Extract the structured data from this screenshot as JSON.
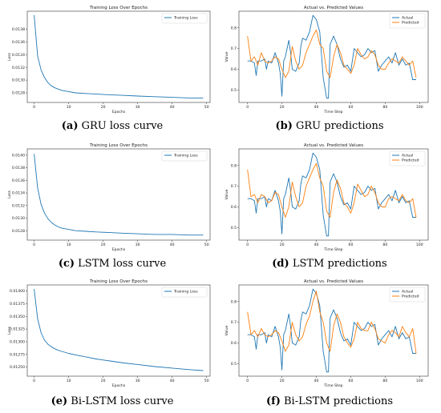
{
  "captions": [
    {
      "tag": "(a)",
      "text": " GRU loss curve"
    },
    {
      "tag": "(b)",
      "text": " GRU predictions"
    },
    {
      "tag": "(c)",
      "text": " LSTM loss curve"
    },
    {
      "tag": "(d)",
      "text": " LSTM predictions"
    },
    {
      "tag": "(e)",
      "text": " Bi-LSTM loss curve"
    },
    {
      "tag": "(f)",
      "text": " Bi-LSTM predictions"
    }
  ],
  "colors": {
    "series_blue": "#1f77b4",
    "series_orange": "#ff7f0e"
  },
  "chart_data": [
    {
      "type": "line",
      "title": "Training Loss Over Epochs",
      "xlabel": "Epochs",
      "ylabel": "Loss",
      "xlim": [
        -2,
        51
      ],
      "ylim": [
        0.01265,
        0.01408
      ],
      "xticks": [
        0,
        10,
        20,
        30,
        40,
        50
      ],
      "yticks": [
        "0.0128",
        "0.0130",
        "0.0132",
        "0.0134",
        "0.0136",
        "0.0138"
      ],
      "ytick_values": [
        0.0128,
        0.013,
        0.0132,
        0.0134,
        0.0136,
        0.0138
      ],
      "legend": "top-right",
      "series": [
        {
          "name": "Training Loss",
          "x": [
            0,
            1,
            2,
            3,
            4,
            5,
            6,
            7,
            8,
            10,
            12,
            15,
            18,
            22,
            26,
            30,
            35,
            40,
            45,
            49
          ],
          "values": [
            0.01402,
            0.01338,
            0.01316,
            0.01304,
            0.01296,
            0.01291,
            0.01288,
            0.01286,
            0.01284,
            0.01282,
            0.0128,
            0.01279,
            0.01278,
            0.01277,
            0.01276,
            0.01275,
            0.01274,
            0.01273,
            0.01272,
            0.01272
          ]
        }
      ]
    },
    {
      "type": "line",
      "title": "Actual vs. Predicted Values",
      "xlabel": "Time Step",
      "ylabel": "Value",
      "xlim": [
        -5,
        105
      ],
      "ylim": [
        0.44,
        0.88
      ],
      "xticks": [
        0,
        20,
        40,
        60,
        80,
        100
      ],
      "yticks": [
        "0.5",
        "0.6",
        "0.7",
        "0.8"
      ],
      "ytick_values": [
        0.5,
        0.6,
        0.7,
        0.8
      ],
      "legend": "top-right",
      "series": [
        {
          "name": "Actual",
          "x": [
            0,
            2,
            4,
            5,
            6,
            8,
            10,
            11,
            12,
            14,
            16,
            18,
            19,
            20,
            21,
            22,
            24,
            25,
            26,
            28,
            30,
            31,
            32,
            34,
            36,
            38,
            40,
            42,
            44,
            46,
            47,
            48,
            50,
            52,
            54,
            56,
            58,
            60,
            62,
            64,
            66,
            68,
            70,
            72,
            74,
            76,
            78,
            80,
            82,
            84,
            86,
            88,
            90,
            92,
            94,
            96,
            98
          ],
          "values": [
            0.64,
            0.64,
            0.63,
            0.57,
            0.64,
            0.64,
            0.65,
            0.6,
            0.64,
            0.63,
            0.68,
            0.63,
            0.58,
            0.47,
            0.64,
            0.66,
            0.74,
            0.68,
            0.6,
            0.59,
            0.63,
            0.71,
            0.75,
            0.74,
            0.78,
            0.86,
            0.84,
            0.78,
            0.56,
            0.46,
            0.46,
            0.72,
            0.76,
            0.72,
            0.65,
            0.61,
            0.62,
            0.59,
            0.7,
            0.68,
            0.66,
            0.67,
            0.7,
            0.68,
            0.69,
            0.59,
            0.62,
            0.64,
            0.66,
            0.63,
            0.68,
            0.62,
            0.65,
            0.62,
            0.63,
            0.55,
            0.55
          ]
        },
        {
          "name": "Predicted",
          "x": [
            0,
            2,
            4,
            6,
            8,
            10,
            12,
            14,
            16,
            18,
            20,
            22,
            24,
            26,
            28,
            30,
            32,
            34,
            36,
            38,
            40,
            42,
            44,
            46,
            48,
            50,
            52,
            54,
            56,
            58,
            60,
            62,
            64,
            66,
            68,
            70,
            72,
            74,
            76,
            78,
            80,
            82,
            84,
            86,
            88,
            90,
            92,
            94,
            96,
            98
          ],
          "values": [
            0.76,
            0.64,
            0.66,
            0.62,
            0.68,
            0.64,
            0.63,
            0.64,
            0.66,
            0.65,
            0.6,
            0.56,
            0.59,
            0.71,
            0.64,
            0.6,
            0.62,
            0.68,
            0.72,
            0.76,
            0.79,
            0.72,
            0.7,
            0.59,
            0.56,
            0.66,
            0.72,
            0.68,
            0.62,
            0.6,
            0.58,
            0.62,
            0.7,
            0.67,
            0.65,
            0.66,
            0.69,
            0.67,
            0.62,
            0.6,
            0.6,
            0.63,
            0.65,
            0.64,
            0.63,
            0.66,
            0.64,
            0.62,
            0.64,
            0.56
          ]
        }
      ]
    },
    {
      "type": "line",
      "title": "Training Loss Over Epochs",
      "xlabel": "Epochs",
      "ylabel": "Loss",
      "xlim": [
        -2,
        51
      ],
      "ylim": [
        0.01265,
        0.0141
      ],
      "xticks": [
        0,
        10,
        20,
        30,
        40,
        50
      ],
      "yticks": [
        "0.0128",
        "0.0130",
        "0.0132",
        "0.0134",
        "0.0136",
        "0.0138",
        "0.0140"
      ],
      "ytick_values": [
        0.0128,
        0.013,
        0.0132,
        0.0134,
        0.0136,
        0.0138,
        0.014
      ],
      "legend": "top-right",
      "series": [
        {
          "name": "Training Loss",
          "x": [
            0,
            1,
            2,
            3,
            4,
            5,
            6,
            7,
            8,
            10,
            12,
            15,
            18,
            22,
            26,
            30,
            35,
            40,
            45,
            49
          ],
          "values": [
            0.01402,
            0.01348,
            0.01322,
            0.01308,
            0.01299,
            0.01293,
            0.01289,
            0.01286,
            0.01284,
            0.01282,
            0.0128,
            0.01279,
            0.01278,
            0.01277,
            0.01276,
            0.01275,
            0.01274,
            0.01274,
            0.01273,
            0.01273
          ]
        }
      ]
    },
    {
      "type": "line",
      "title": "Actual vs. Predicted Values",
      "xlabel": "Time Step",
      "ylabel": "Value",
      "xlim": [
        -5,
        105
      ],
      "ylim": [
        0.44,
        0.88
      ],
      "xticks": [
        0,
        20,
        40,
        60,
        80,
        100
      ],
      "yticks": [
        "0.5",
        "0.6",
        "0.7",
        "0.8"
      ],
      "ytick_values": [
        0.5,
        0.6,
        0.7,
        0.8
      ],
      "legend": "top-right",
      "series": [
        {
          "name": "Actual",
          "x": [
            0,
            2,
            4,
            5,
            6,
            8,
            10,
            11,
            12,
            14,
            16,
            18,
            19,
            20,
            21,
            22,
            24,
            25,
            26,
            28,
            30,
            31,
            32,
            34,
            36,
            38,
            40,
            42,
            44,
            46,
            47,
            48,
            50,
            52,
            54,
            56,
            58,
            60,
            62,
            64,
            66,
            68,
            70,
            72,
            74,
            76,
            78,
            80,
            82,
            84,
            86,
            88,
            90,
            92,
            94,
            96,
            98
          ],
          "values": [
            0.64,
            0.64,
            0.63,
            0.57,
            0.64,
            0.64,
            0.65,
            0.6,
            0.64,
            0.63,
            0.68,
            0.63,
            0.58,
            0.47,
            0.64,
            0.66,
            0.74,
            0.68,
            0.6,
            0.59,
            0.63,
            0.71,
            0.75,
            0.74,
            0.78,
            0.86,
            0.84,
            0.78,
            0.56,
            0.46,
            0.46,
            0.72,
            0.76,
            0.72,
            0.65,
            0.61,
            0.62,
            0.59,
            0.7,
            0.68,
            0.66,
            0.67,
            0.7,
            0.68,
            0.69,
            0.59,
            0.62,
            0.64,
            0.66,
            0.63,
            0.68,
            0.62,
            0.65,
            0.62,
            0.63,
            0.55,
            0.55
          ]
        },
        {
          "name": "Predicted",
          "x": [
            0,
            2,
            4,
            6,
            8,
            10,
            12,
            14,
            16,
            18,
            20,
            22,
            24,
            26,
            28,
            30,
            32,
            34,
            36,
            38,
            40,
            42,
            44,
            46,
            48,
            50,
            52,
            54,
            56,
            58,
            60,
            62,
            64,
            66,
            68,
            70,
            72,
            74,
            76,
            78,
            80,
            82,
            84,
            86,
            88,
            90,
            92,
            94,
            96,
            98
          ],
          "values": [
            0.78,
            0.65,
            0.66,
            0.62,
            0.66,
            0.65,
            0.62,
            0.63,
            0.67,
            0.66,
            0.6,
            0.55,
            0.6,
            0.72,
            0.65,
            0.6,
            0.62,
            0.7,
            0.74,
            0.78,
            0.81,
            0.74,
            0.7,
            0.58,
            0.55,
            0.67,
            0.73,
            0.69,
            0.62,
            0.6,
            0.57,
            0.62,
            0.71,
            0.68,
            0.65,
            0.66,
            0.7,
            0.67,
            0.62,
            0.6,
            0.6,
            0.64,
            0.65,
            0.64,
            0.63,
            0.66,
            0.63,
            0.62,
            0.64,
            0.55
          ]
        }
      ]
    },
    {
      "type": "line",
      "title": "Training Loss Over Epochs",
      "xlabel": "Epochs",
      "ylabel": "Loss",
      "xlim": [
        -2,
        51
      ],
      "ylim": [
        0.01232,
        0.01412
      ],
      "xticks": [
        0,
        10,
        20,
        30,
        40,
        50
      ],
      "yticks": [
        "0.01250",
        "0.01275",
        "0.01300",
        "0.01325",
        "0.01350",
        "0.01375",
        "0.01400"
      ],
      "ytick_values": [
        0.0125,
        0.01275,
        0.013,
        0.01325,
        0.0135,
        0.01375,
        0.014
      ],
      "legend": "top-right",
      "series": [
        {
          "name": "Training Loss",
          "x": [
            0,
            1,
            2,
            3,
            4,
            5,
            6,
            7,
            8,
            10,
            12,
            15,
            18,
            22,
            26,
            30,
            35,
            40,
            45,
            49
          ],
          "values": [
            0.01404,
            0.01345,
            0.01318,
            0.01303,
            0.01295,
            0.0129,
            0.01286,
            0.01283,
            0.01281,
            0.01277,
            0.01274,
            0.0127,
            0.01266,
            0.01262,
            0.01258,
            0.01255,
            0.01251,
            0.01248,
            0.01245,
            0.01243
          ]
        }
      ]
    },
    {
      "type": "line",
      "title": "Actual vs. Predicted Values",
      "xlabel": "Time Step",
      "ylabel": "Value",
      "xlim": [
        -5,
        105
      ],
      "ylim": [
        0.44,
        0.88
      ],
      "xticks": [
        0,
        20,
        40,
        60,
        80,
        100
      ],
      "yticks": [
        "0.5",
        "0.6",
        "0.7",
        "0.8"
      ],
      "ytick_values": [
        0.5,
        0.6,
        0.7,
        0.8
      ],
      "legend": "top-right",
      "series": [
        {
          "name": "Actual",
          "x": [
            0,
            2,
            4,
            5,
            6,
            8,
            10,
            11,
            12,
            14,
            16,
            18,
            19,
            20,
            21,
            22,
            24,
            25,
            26,
            28,
            30,
            31,
            32,
            34,
            36,
            38,
            40,
            42,
            44,
            46,
            47,
            48,
            50,
            52,
            54,
            56,
            58,
            60,
            62,
            64,
            66,
            68,
            70,
            72,
            74,
            76,
            78,
            80,
            82,
            84,
            86,
            88,
            90,
            92,
            94,
            96,
            98
          ],
          "values": [
            0.64,
            0.64,
            0.63,
            0.57,
            0.64,
            0.64,
            0.65,
            0.6,
            0.64,
            0.63,
            0.68,
            0.63,
            0.58,
            0.47,
            0.64,
            0.66,
            0.74,
            0.68,
            0.6,
            0.59,
            0.63,
            0.71,
            0.75,
            0.74,
            0.78,
            0.86,
            0.84,
            0.78,
            0.56,
            0.46,
            0.46,
            0.72,
            0.76,
            0.72,
            0.65,
            0.61,
            0.62,
            0.59,
            0.7,
            0.68,
            0.66,
            0.67,
            0.7,
            0.68,
            0.69,
            0.59,
            0.62,
            0.64,
            0.66,
            0.63,
            0.68,
            0.62,
            0.65,
            0.62,
            0.63,
            0.55,
            0.55
          ]
        },
        {
          "name": "Predicted",
          "x": [
            0,
            2,
            4,
            6,
            8,
            10,
            12,
            14,
            16,
            18,
            20,
            22,
            24,
            26,
            28,
            30,
            32,
            34,
            36,
            38,
            40,
            42,
            44,
            46,
            48,
            50,
            52,
            54,
            56,
            58,
            60,
            62,
            64,
            66,
            68,
            70,
            72,
            74,
            76,
            78,
            80,
            82,
            84,
            86,
            88,
            90,
            92,
            94,
            96,
            98
          ],
          "values": [
            0.75,
            0.64,
            0.66,
            0.63,
            0.67,
            0.64,
            0.63,
            0.64,
            0.66,
            0.65,
            0.61,
            0.56,
            0.59,
            0.7,
            0.64,
            0.61,
            0.63,
            0.69,
            0.73,
            0.8,
            0.85,
            0.75,
            0.7,
            0.6,
            0.56,
            0.68,
            0.74,
            0.7,
            0.63,
            0.6,
            0.58,
            0.62,
            0.7,
            0.67,
            0.66,
            0.66,
            0.7,
            0.67,
            0.62,
            0.61,
            0.6,
            0.64,
            0.66,
            0.65,
            0.63,
            0.68,
            0.65,
            0.63,
            0.67,
            0.55
          ]
        }
      ]
    }
  ]
}
